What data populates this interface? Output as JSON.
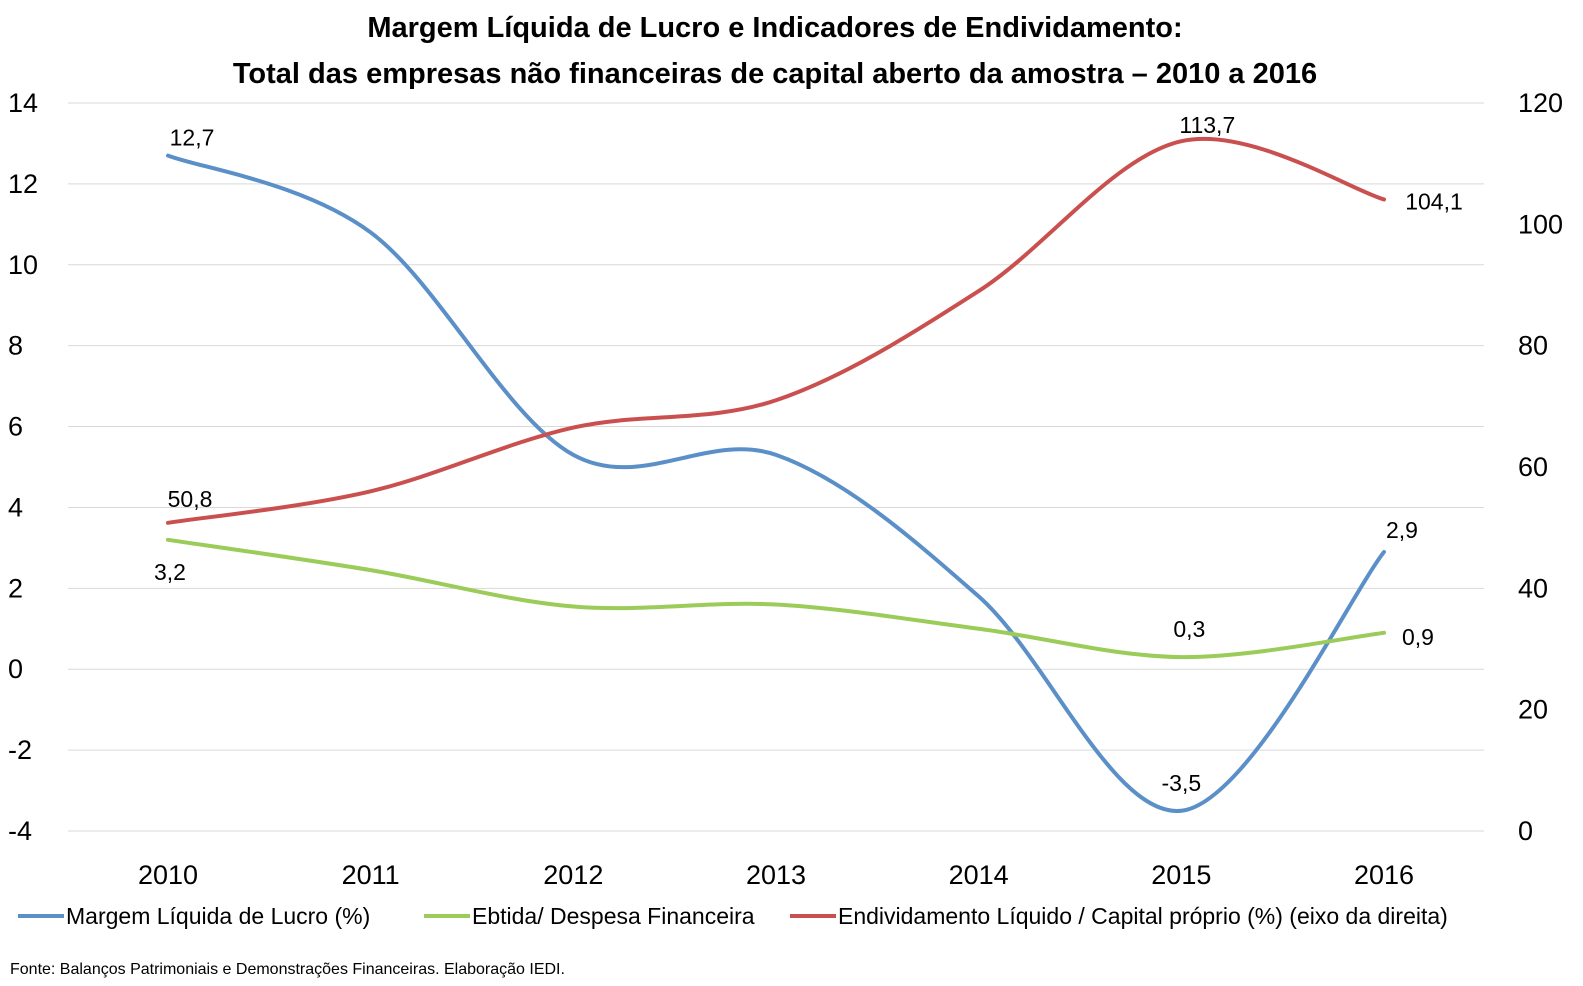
{
  "chart_data": {
    "type": "line",
    "title_lines": [
      "Margem Líquida de Lucro e Indicadores de Endividamento:",
      "Total das empresas não financeiras de capital aberto da amostra – 2010 a 2016"
    ],
    "x": [
      "2010",
      "2011",
      "2012",
      "2013",
      "2014",
      "2015",
      "2016"
    ],
    "y_left": {
      "min": -4,
      "max": 14,
      "step": 2,
      "ticks": [
        "14",
        "12",
        "10",
        "8",
        "6",
        "4",
        "2",
        "0",
        "-2",
        "-4"
      ]
    },
    "y_right": {
      "min": 0,
      "max": 120,
      "step": 20,
      "ticks": [
        "120",
        "100",
        "80",
        "60",
        "40",
        "20",
        "0"
      ]
    },
    "grid": true,
    "legend_position": "bottom",
    "series": [
      {
        "name": "Margem Líquida de Lucro (%)",
        "axis": "left",
        "color": "#5b8fc7",
        "values": [
          12.7,
          10.8,
          5.3,
          5.3,
          1.8,
          -3.5,
          2.9
        ],
        "labels": [
          {
            "index": 0,
            "text": "12,7"
          },
          {
            "index": 5,
            "text": "-3,5"
          },
          {
            "index": 6,
            "text": "2,9"
          }
        ]
      },
      {
        "name": "Ebtida/ Despesa Financeira",
        "axis": "left",
        "color": "#9bcc5a",
        "values": [
          3.2,
          2.45,
          1.55,
          1.6,
          1.0,
          0.3,
          0.9
        ],
        "labels": [
          {
            "index": 0,
            "text": "3,2"
          },
          {
            "index": 5,
            "text": "0,3"
          },
          {
            "index": 6,
            "text": "0,9"
          }
        ]
      },
      {
        "name": "Endividamento Líquido / Capital próprio (%) (eixo da direita)",
        "axis": "right",
        "color": "#c9504f",
        "values": [
          50.8,
          56.0,
          66.5,
          71.0,
          89.0,
          113.7,
          104.1
        ],
        "labels": [
          {
            "index": 0,
            "text": "50,8"
          },
          {
            "index": 5,
            "text": "113,7"
          },
          {
            "index": 6,
            "text": "104,1"
          }
        ]
      }
    ],
    "source": "Fonte: Balanços Patrimoniais e Demonstrações Financeiras. Elaboração IEDI."
  }
}
